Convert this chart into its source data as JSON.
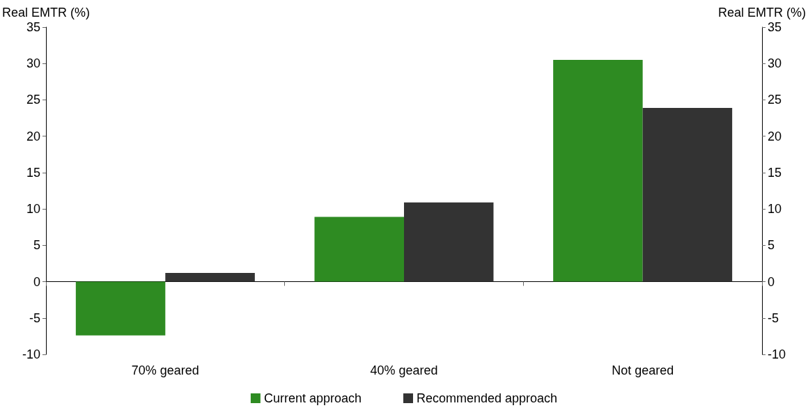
{
  "chart_data": {
    "type": "bar",
    "ylabel": "Real EMTR (%)",
    "y2label": "Real EMTR (%)",
    "categories": [
      "70% geared",
      "40% geared",
      "Not geared"
    ],
    "series": [
      {
        "name": "Current approach",
        "color": "#2e8b22",
        "values": [
          -7.4,
          8.9,
          30.5
        ]
      },
      {
        "name": "Recommended approach",
        "color": "#333333",
        "values": [
          1.2,
          10.9,
          23.9
        ]
      }
    ],
    "ylim": [
      -10,
      35
    ],
    "yticks": [
      -10,
      -5,
      0,
      5,
      10,
      15,
      20,
      25,
      30,
      35
    ],
    "y2lim": [
      -10,
      35
    ],
    "y2ticks": [
      -10,
      -5,
      0,
      5,
      10,
      15,
      20,
      25,
      30,
      35
    ],
    "legend": "bottom"
  }
}
